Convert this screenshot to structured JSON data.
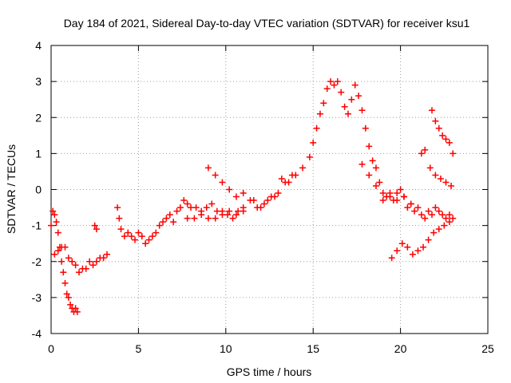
{
  "chart_data": {
    "type": "scatter",
    "title": "Day 184 of 2021, Sidereal Day-to-day VTEC variation (SDTVAR) for receiver ksu1",
    "xlabel": "GPS time / hours",
    "ylabel": "SDTVAR / TECUs",
    "xlim": [
      0,
      25
    ],
    "ylim": [
      -4,
      4
    ],
    "x_ticks": [
      "0",
      "5",
      "10",
      "15",
      "20",
      "25"
    ],
    "y_ticks": [
      "-4",
      "-3",
      "-2",
      "-1",
      "0",
      "1",
      "2",
      "3",
      "4"
    ],
    "grid": true,
    "marker": "+",
    "series": [
      {
        "name": "SDTVAR",
        "color": "#ff0000",
        "x": [
          0.0,
          0.1,
          0.2,
          0.3,
          0.4,
          0.5,
          0.6,
          0.7,
          0.8,
          0.9,
          1.0,
          1.1,
          1.2,
          1.3,
          1.4,
          1.5,
          0.2,
          0.4,
          0.6,
          0.8,
          1.0,
          1.2,
          1.4,
          1.6,
          1.8,
          2.0,
          2.2,
          2.4,
          2.6,
          2.8,
          3.0,
          3.2,
          2.5,
          2.6,
          3.8,
          3.9,
          4.0,
          4.2,
          4.4,
          4.6,
          4.8,
          5.0,
          5.2,
          5.4,
          5.6,
          5.8,
          6.0,
          6.2,
          6.4,
          6.6,
          6.8,
          7.0,
          7.2,
          7.4,
          7.6,
          7.8,
          8.0,
          8.3,
          8.6,
          8.9,
          9.2,
          9.5,
          9.8,
          10.1,
          10.4,
          10.7,
          11.0,
          7.8,
          8.2,
          8.6,
          9.0,
          9.4,
          9.8,
          10.2,
          10.6,
          11.0,
          9.0,
          9.4,
          9.8,
          10.2,
          10.6,
          11.0,
          11.4,
          11.8,
          12.2,
          12.6,
          13.0,
          13.4,
          13.8,
          11.6,
          12.0,
          12.4,
          12.8,
          13.2,
          13.6,
          14.0,
          14.4,
          14.8,
          15.0,
          15.2,
          15.4,
          15.6,
          15.8,
          16.0,
          16.2,
          16.4,
          16.6,
          16.8,
          17.0,
          17.2,
          17.4,
          17.6,
          17.8,
          18.0,
          18.2,
          18.4,
          18.6,
          18.8,
          19.0,
          19.2,
          19.4,
          19.6,
          19.8,
          20.0,
          20.2,
          20.4,
          20.6,
          20.8,
          21.0,
          21.2,
          21.4,
          21.6,
          21.8,
          22.0,
          22.2,
          22.4,
          22.6,
          22.8,
          23.0,
          19.5,
          19.8,
          20.1,
          20.4,
          20.7,
          21.0,
          21.3,
          21.6,
          21.9,
          22.2,
          22.5,
          22.8,
          21.2,
          21.4,
          21.7,
          22.0,
          22.3,
          22.6,
          22.9,
          21.8,
          22.0,
          22.2,
          22.4,
          22.6,
          22.8,
          23.0,
          17.8,
          18.2,
          18.6,
          19.0,
          19.4,
          19.8,
          20.2,
          20.6
        ],
        "y": [
          -1.0,
          -0.6,
          -0.7,
          -0.9,
          -1.2,
          -1.6,
          -2.0,
          -2.3,
          -2.6,
          -2.9,
          -3.0,
          -3.2,
          -3.3,
          -3.4,
          -3.3,
          -3.4,
          -1.8,
          -1.7,
          -1.6,
          -1.6,
          -1.9,
          -2.0,
          -2.1,
          -2.3,
          -2.2,
          -2.2,
          -2.0,
          -2.1,
          -2.0,
          -1.9,
          -1.9,
          -1.8,
          -1.0,
          -1.1,
          -0.5,
          -0.8,
          -1.1,
          -1.3,
          -1.2,
          -1.3,
          -1.4,
          -1.2,
          -1.3,
          -1.5,
          -1.4,
          -1.3,
          -1.2,
          -1.0,
          -0.9,
          -0.8,
          -0.7,
          -0.9,
          -0.6,
          -0.5,
          -0.3,
          -0.4,
          -0.5,
          -0.5,
          -0.6,
          -0.5,
          -0.4,
          -0.6,
          -0.6,
          -0.7,
          -0.8,
          -0.6,
          -0.5,
          -0.8,
          -0.8,
          -0.7,
          -0.8,
          -0.8,
          -0.7,
          -0.6,
          -0.7,
          -0.6,
          0.6,
          0.4,
          0.2,
          0.0,
          -0.2,
          -0.1,
          -0.3,
          -0.5,
          -0.4,
          -0.2,
          -0.1,
          0.2,
          0.4,
          -0.3,
          -0.5,
          -0.3,
          -0.2,
          0.3,
          0.2,
          0.4,
          0.6,
          0.9,
          1.3,
          1.7,
          2.1,
          2.4,
          2.8,
          3.0,
          2.9,
          3.0,
          2.7,
          2.3,
          2.1,
          2.5,
          2.9,
          2.6,
          2.2,
          1.7,
          1.2,
          0.8,
          0.6,
          0.2,
          -0.3,
          -0.2,
          -0.1,
          -0.3,
          -0.1,
          0.0,
          -0.2,
          -0.5,
          -0.4,
          -0.6,
          -0.5,
          -0.7,
          -0.8,
          -0.6,
          -0.7,
          -0.5,
          -0.6,
          -0.7,
          -0.8,
          -0.7,
          -0.8,
          -1.9,
          -1.7,
          -1.5,
          -1.6,
          -1.8,
          -1.7,
          -1.6,
          -1.4,
          -1.2,
          -1.1,
          -1.0,
          -0.9,
          1.0,
          1.1,
          0.6,
          0.4,
          0.3,
          0.2,
          0.1,
          2.2,
          1.9,
          1.7,
          1.5,
          1.4,
          1.3,
          1.0,
          0.7,
          0.4,
          0.1,
          -0.1,
          -0.2,
          -0.3,
          -0.2,
          -0.4
        ]
      }
    ]
  }
}
